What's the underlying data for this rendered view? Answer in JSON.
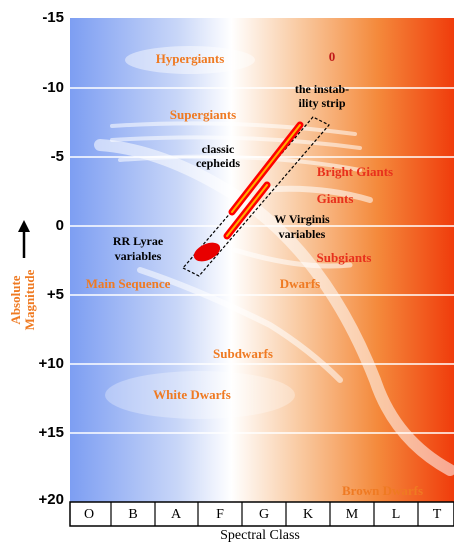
{
  "y_axis": {
    "title": [
      "Absolute",
      "Magnitude"
    ],
    "ticks": [
      "-15",
      "-10",
      "-5",
      "0",
      "+5",
      "+10",
      "+15",
      "+20"
    ]
  },
  "x_axis": {
    "title": "Spectral Class",
    "classes": [
      "O",
      "B",
      "A",
      "F",
      "G",
      "K",
      "M",
      "L",
      "T"
    ]
  },
  "regions": {
    "hypergiants": "Hypergiants",
    "zero": "0",
    "instability_strip": [
      "the instab-",
      "ility strip"
    ],
    "supergiants": "Supergiants",
    "classic_cepheids": [
      "classic",
      "cepheids"
    ],
    "bright_giants": "Bright Giants",
    "giants": "Giants",
    "w_virginis": [
      "W Virginis",
      "variables"
    ],
    "rr_lyrae": [
      "RR Lyrae",
      "variables"
    ],
    "subgiants": "Subgiants",
    "main_sequence": "Main Sequence",
    "dwarfs": "Dwarfs",
    "subdwarfs": "Subdwarfs",
    "white_dwarfs": "White Dwarfs",
    "brown_dwarfs": "Brown Dwarfs"
  }
}
